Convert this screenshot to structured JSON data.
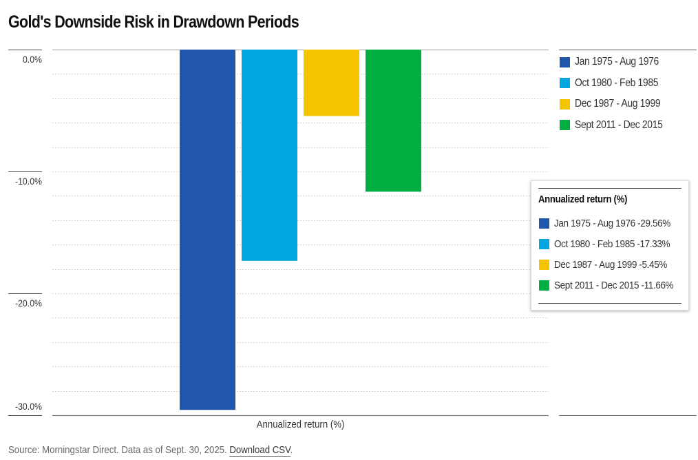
{
  "title": "Gold's Downside Risk in Drawdown Periods",
  "chart_data": {
    "type": "bar",
    "title": "Gold's Downside Risk in Drawdown Periods",
    "xlabel": "Annualized return (%)",
    "ylabel": "",
    "categories": [
      "Annualized return (%)"
    ],
    "series": [
      {
        "name": "Jan 1975 - Aug 1976",
        "values": [
          -29.56
        ],
        "color": "#2156AD"
      },
      {
        "name": "Oct 1980 - Feb 1985",
        "values": [
          -17.33
        ],
        "color": "#00A6E0"
      },
      {
        "name": "Dec 1987 - Aug 1999",
        "values": [
          -5.45
        ],
        "color": "#F5C400"
      },
      {
        "name": "Sept 2011 - Dec 2015",
        "values": [
          -11.66
        ],
        "color": "#00AE41"
      }
    ],
    "ylim": [
      -30,
      0
    ],
    "yticks": [
      0,
      -10,
      -20,
      -30
    ],
    "ytick_labels": [
      "0.0%",
      "-10.0%",
      "-20.0%",
      "-30.0%"
    ],
    "minor_grid_step": 2,
    "grid": true,
    "legend_position": "right"
  },
  "legend": {
    "items": [
      {
        "label": "Jan 1975 - Aug 1976",
        "color": "#2156AD"
      },
      {
        "label": "Oct 1980 - Feb 1985",
        "color": "#00A6E0"
      },
      {
        "label": "Dec 1987 - Aug 1999",
        "color": "#F5C400"
      },
      {
        "label": "Sept 2011 - Dec 2015",
        "color": "#00AE41"
      }
    ]
  },
  "tooltip": {
    "title": "Annualized return (%)",
    "items": [
      {
        "label": "Jan 1975 - Aug 1976 -29.56%",
        "color": "#2156AD"
      },
      {
        "label": "Oct 1980 - Feb 1985 -17.33%",
        "color": "#00A6E0"
      },
      {
        "label": "Dec 1987 - Aug 1999 -5.45%",
        "color": "#F5C400"
      },
      {
        "label": "Sept 2011 - Dec 2015 -11.66%",
        "color": "#00AE41"
      }
    ]
  },
  "xaxis_label": "Annualized return (%)",
  "footer": {
    "source": "Source: Morningstar Direct. Data as of Sept. 30, 2025.",
    "link": "Download CSV",
    "trail": "."
  }
}
